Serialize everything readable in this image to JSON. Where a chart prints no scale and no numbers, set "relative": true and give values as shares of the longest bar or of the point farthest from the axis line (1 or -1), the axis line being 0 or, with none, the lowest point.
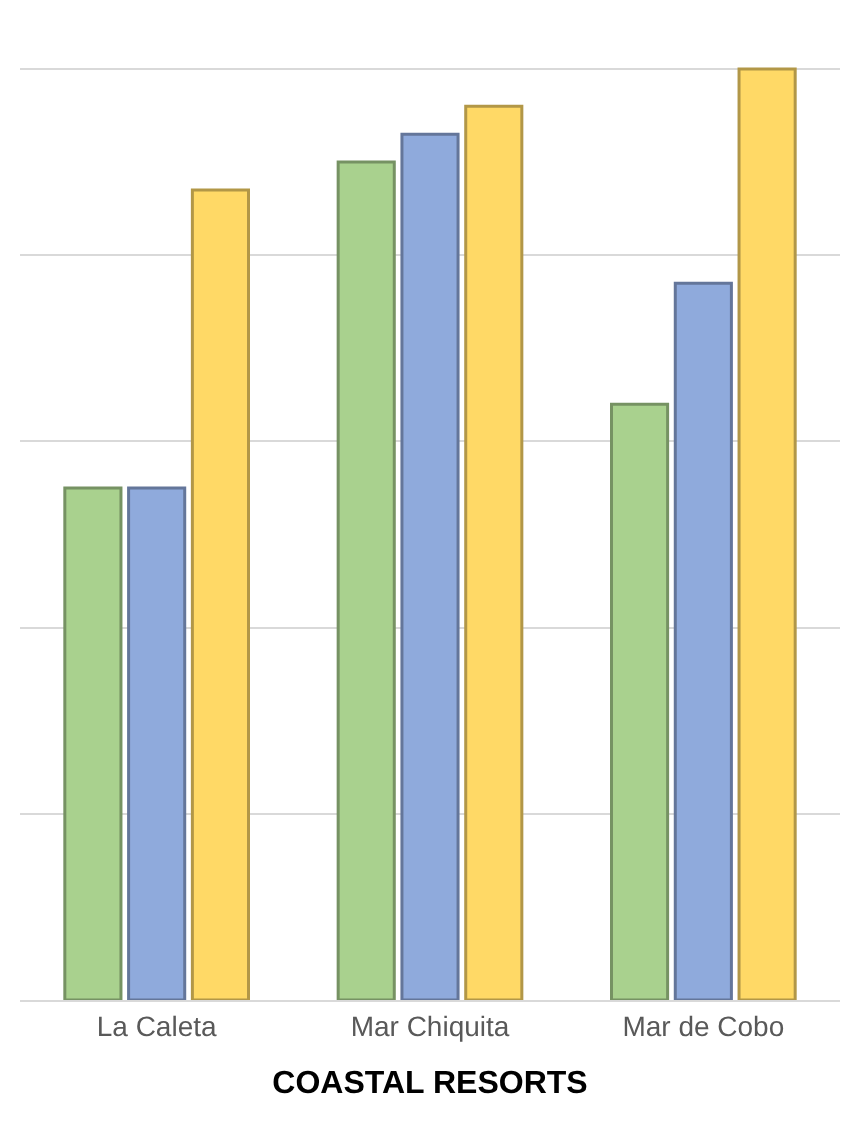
{
  "chart_data": {
    "type": "bar",
    "xlabel": "COASTAL RESORTS",
    "categories": [
      "La Caleta",
      "Mar Chiquita",
      "Mar de Cobo"
    ],
    "relative": true,
    "grid": "y",
    "series": [
      {
        "color": "#a9d18e",
        "values": [
          0.55,
          0.9,
          0.64
        ]
      },
      {
        "color": "#8faadc",
        "values": [
          0.55,
          0.93,
          0.77
        ]
      },
      {
        "color": "#ffd966",
        "values": [
          0.87,
          0.96,
          1.0
        ]
      }
    ]
  }
}
